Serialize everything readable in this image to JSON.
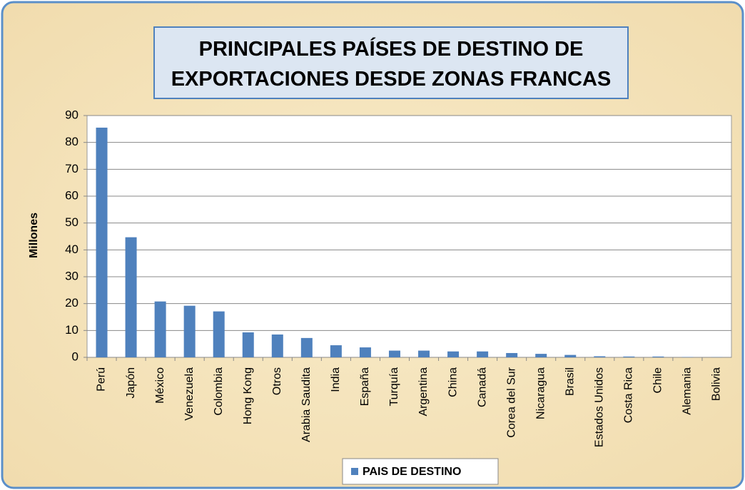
{
  "chart_data": {
    "type": "bar",
    "title": "PRINCIPALES PAÍSES DE DESTINO DE EXPORTACIONES DESDE ZONAS FRANCAS",
    "y_label": "Millones",
    "categories": [
      "Perú",
      "Japón",
      "México",
      "Venezuela",
      "Colombia",
      "Hong Kong",
      "Otros",
      "Arabia Saudita",
      "India",
      "España",
      "Turquía",
      "Argentina",
      "China",
      "Canadá",
      "Corea del Sur",
      "Nicaragua",
      "Brasil",
      "Estados Unidos",
      "Costa Rica",
      "Chile",
      "Alemania",
      "Bolivia"
    ],
    "series": [
      {
        "name": "PAIS DE DESTINO",
        "color": "#4f81bd",
        "values": [
          85.5,
          44.7,
          20.8,
          19.2,
          17.1,
          9.3,
          8.5,
          7.2,
          4.5,
          3.7,
          2.5,
          2.5,
          2.2,
          2.2,
          1.6,
          1.3,
          0.9,
          0.4,
          0.3,
          0.3,
          0.1,
          0.05
        ]
      }
    ],
    "ylim": [
      0,
      90
    ],
    "yticks": [
      0,
      10,
      20,
      30,
      40,
      50,
      60,
      70,
      80,
      90
    ],
    "grid": true,
    "legend": "bottom"
  }
}
